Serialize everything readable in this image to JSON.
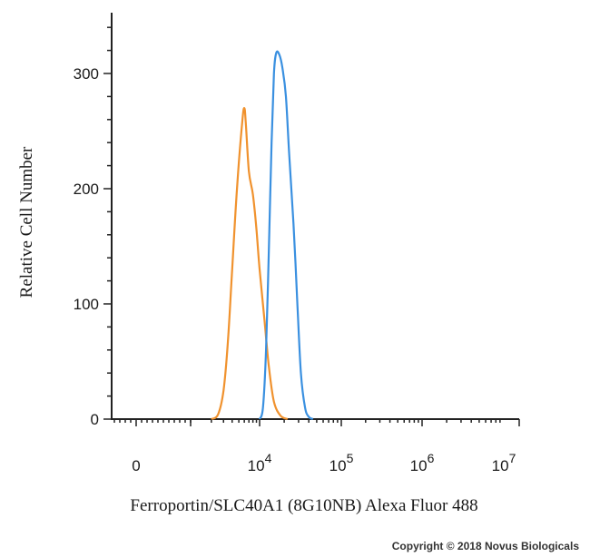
{
  "chart_data": {
    "type": "line",
    "title": "",
    "xlabel": "Ferroportin/SLC40A1 (8G10NB) Alexa Fluor 488",
    "ylabel": "Relative Cell Number",
    "x_scale": "log",
    "x_ticks": [
      {
        "base": "0",
        "exp": ""
      },
      {
        "base": "10",
        "exp": "4"
      },
      {
        "base": "10",
        "exp": "5"
      },
      {
        "base": "10",
        "exp": "6"
      },
      {
        "base": "10",
        "exp": "7"
      }
    ],
    "y_ticks": [
      "0",
      "100",
      "200",
      "300"
    ],
    "ylim": [
      0,
      350
    ],
    "grid": false,
    "series": [
      {
        "color": "#f0922e",
        "points": [
          [
            2000,
            0
          ],
          [
            2500,
            4
          ],
          [
            3000,
            25
          ],
          [
            3500,
            70
          ],
          [
            4000,
            130
          ],
          [
            4700,
            200
          ],
          [
            5600,
            258
          ],
          [
            6000,
            270
          ],
          [
            6300,
            258
          ],
          [
            7000,
            215
          ],
          [
            8000,
            195
          ],
          [
            9000,
            165
          ],
          [
            10000,
            130
          ],
          [
            11500,
            85
          ],
          [
            13000,
            45
          ],
          [
            15000,
            15
          ],
          [
            18000,
            3
          ],
          [
            22000,
            0
          ]
        ]
      },
      {
        "color": "#3a90e0",
        "points": [
          [
            10000,
            0
          ],
          [
            11000,
            10
          ],
          [
            12000,
            60
          ],
          [
            13000,
            150
          ],
          [
            14000,
            240
          ],
          [
            15000,
            300
          ],
          [
            16000,
            318
          ],
          [
            17500,
            316
          ],
          [
            19000,
            305
          ],
          [
            21000,
            280
          ],
          [
            23000,
            230
          ],
          [
            26000,
            170
          ],
          [
            29000,
            100
          ],
          [
            32000,
            40
          ],
          [
            36000,
            10
          ],
          [
            40000,
            2
          ],
          [
            45000,
            0
          ]
        ]
      }
    ]
  },
  "copyright": "Copyright © 2018 Novus Biologicals"
}
